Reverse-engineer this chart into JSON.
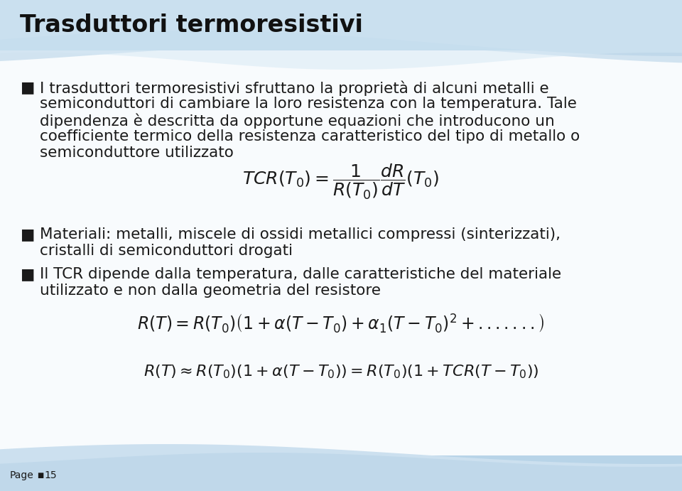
{
  "title": "Trasduttori termoresistivi",
  "bg_color": "#f5f9fc",
  "bullet_char": "■",
  "bullet1_lines": [
    "I trasduttori termoresistivi sfruttano la proprietà di alcuni metalli e",
    "semiconduttori di cambiare la loro resistenza con la temperatura. Tale",
    "dipendenza è descritta da opportune equazioni che introducono un",
    "coefficiente termico della resistenza caratteristico del tipo di metallo o",
    "semiconduttore utilizzato"
  ],
  "bullet2_lines": [
    "Materiali: metalli, miscele di ossidi metallici compressi (sinterizzati),",
    "cristalli di semiconduttori drogati"
  ],
  "bullet3_lines": [
    "Il TCR dipende dalla temperatura, dalle caratteristiche del materiale",
    "utilizzato e non dalla geometria del resistore"
  ],
  "page_label": "Page ▢ 15",
  "title_fontsize": 24,
  "body_fontsize": 15.5,
  "formula_fontsize": 17
}
